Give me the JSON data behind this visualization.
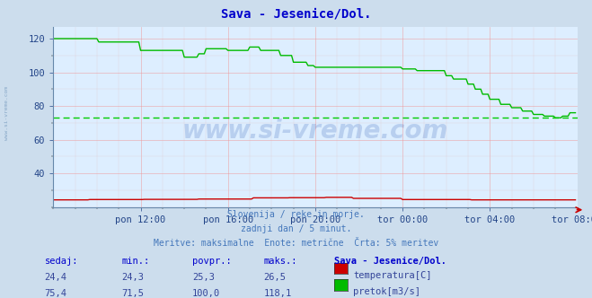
{
  "title": "Sava - Jesenice/Dol.",
  "title_color": "#0000cc",
  "bg_color": "#ccdded",
  "plot_bg_color": "#ddeeff",
  "grid_color_major": "#ee9999",
  "grid_color_minor": "#ddbbbb",
  "tick_color": "#224488",
  "subtitle_lines": [
    "Slovenija / reke in morje.",
    "zadnji dan / 5 minut.",
    "Meritve: maksimalne  Enote: metrične  Črta: 5% meritev"
  ],
  "subtitle_color": "#4477bb",
  "watermark": "www.si-vreme.com",
  "watermark_color": "#1144aa",
  "watermark_alpha": 0.18,
  "ylim": [
    20,
    127
  ],
  "yticks": [
    40,
    60,
    80,
    100,
    120
  ],
  "ytick_labels": [
    "40",
    "60",
    "80",
    "100",
    "120"
  ],
  "n_points": 288,
  "pretok_avg_line": 73.0,
  "pretok_color": "#00bb00",
  "pretok_avg_color": "#00cc00",
  "temperatura_color": "#cc0000",
  "xtick_labels": [
    "pon 12:00",
    "pon 16:00",
    "pon 20:00",
    "tor 00:00",
    "tor 04:00",
    "tor 08:00"
  ],
  "xtick_positions": [
    48,
    96,
    144,
    192,
    240,
    288
  ],
  "table_headers": [
    "sedaj:",
    "min.:",
    "povpr.:",
    "maks.:",
    "Sava - Jesenice/Dol."
  ],
  "table_temp": [
    "24,4",
    "24,3",
    "25,3",
    "26,5",
    "temperatura[C]"
  ],
  "table_flow": [
    "75,4",
    "71,5",
    "100,0",
    "118,1",
    "pretok[m3/s]"
  ],
  "temp_color": "#cc0000",
  "flow_color": "#00bb00",
  "header_color": "#0000cc",
  "data_color": "#334499"
}
